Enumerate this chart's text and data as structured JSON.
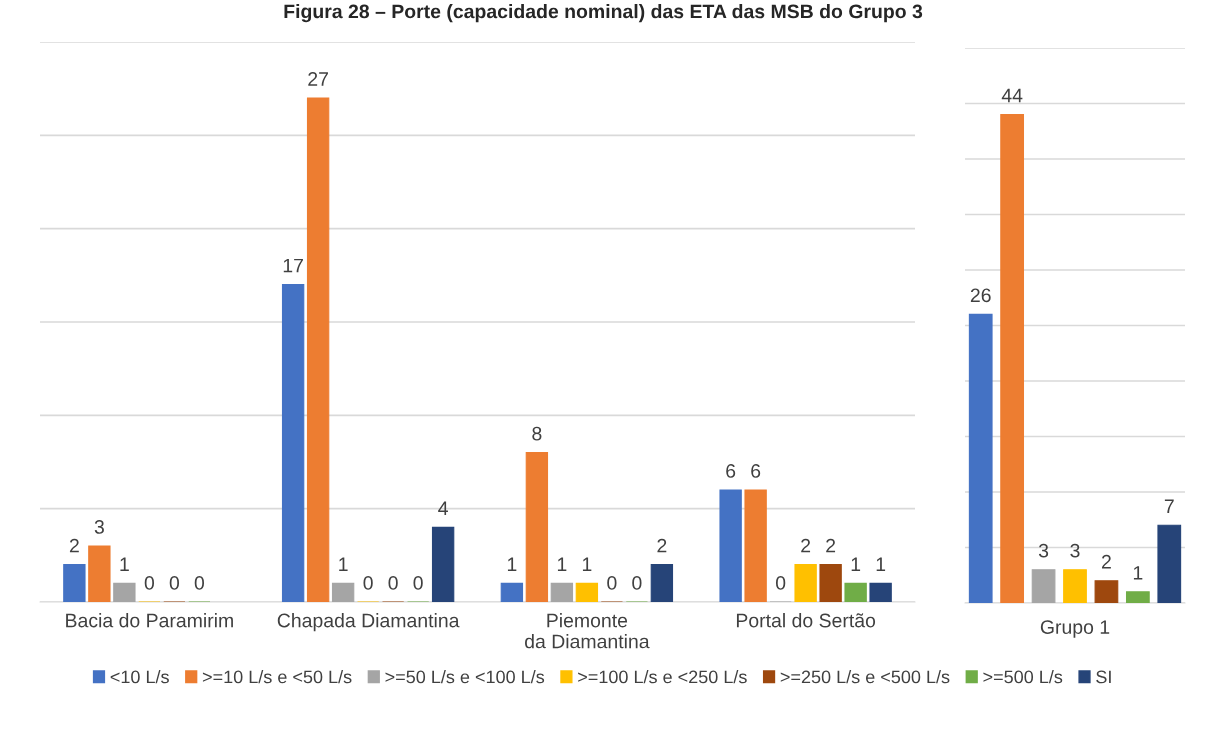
{
  "chart_data": [
    {
      "type": "bar",
      "title": "Figura 28 – Porte (capacidade nominal) das ETA das MSB do Grupo 3",
      "categories": [
        "Bacia do Paramirim",
        "Chapada Diamantina",
        "Piemonte da Diamantina",
        "Portal do Sertão"
      ],
      "series": [
        {
          "name": "<10 L/s",
          "color": "#4472c4",
          "values": [
            2,
            17,
            1,
            6
          ]
        },
        {
          "name": ">=10 L/s e <50 L/s",
          "color": "#ed7d31",
          "values": [
            3,
            27,
            8,
            6
          ]
        },
        {
          "name": ">=50 L/s e <100 L/s",
          "color": "#a5a5a5",
          "values": [
            1,
            1,
            1,
            0
          ]
        },
        {
          "name": ">=100 L/s e <250 L/s",
          "color": "#ffc000",
          "values": [
            0,
            0,
            1,
            2
          ]
        },
        {
          "name": ">=250 L/s e <500 L/s",
          "color": "#9e480e",
          "values": [
            0,
            0,
            0,
            2
          ]
        },
        {
          "name": ">=500 L/s",
          "color": "#70ad47",
          "values": [
            0,
            0,
            0,
            1
          ]
        },
        {
          "name": "SI",
          "color": "#264478",
          "values": [
            null,
            4,
            2,
            1
          ]
        }
      ],
      "ylim": [
        0,
        30
      ],
      "yticks": [
        {
          "value": 0,
          "label": null
        },
        {
          "value": 5,
          "label": null
        },
        {
          "value": 10,
          "label": null
        },
        {
          "value": 15,
          "label": null
        },
        {
          "value": 20,
          "label": null
        },
        {
          "value": 25,
          "label": null
        },
        {
          "value": 30,
          "label": null
        }
      ],
      "grid": "y",
      "tick_labels": "x",
      "data_labels": true,
      "legend": "bottom"
    },
    {
      "type": "bar",
      "xlabel": "Grupo 1",
      "categories": [
        null,
        null,
        null,
        null,
        null,
        null,
        null
      ],
      "values": [
        26,
        44,
        3,
        3,
        2,
        1,
        7
      ],
      "colors": [
        "#4472c4",
        "#ed7d31",
        "#a5a5a5",
        "#ffc000",
        "#9e480e",
        "#70ad47",
        "#264478"
      ],
      "ylim": [
        0,
        50
      ],
      "yticks": [
        {
          "value": 0,
          "label": null
        },
        {
          "value": 5,
          "label": null
        },
        {
          "value": 10,
          "label": null
        },
        {
          "value": 15,
          "label": null
        },
        {
          "value": 20,
          "label": null
        },
        {
          "value": 25,
          "label": null
        },
        {
          "value": 30,
          "label": null
        },
        {
          "value": 35,
          "label": null
        },
        {
          "value": 40,
          "label": null
        },
        {
          "value": 45,
          "label": null
        },
        {
          "value": 50,
          "label": null
        }
      ],
      "grid": "y",
      "tick_labels": "x",
      "data_labels": true
    }
  ]
}
